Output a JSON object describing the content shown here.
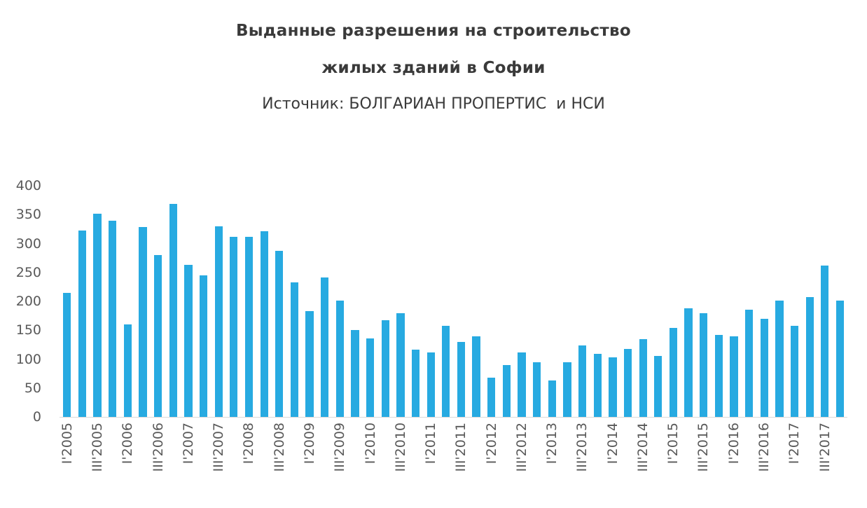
{
  "title": {
    "line1": "Выданные разрешения на строительство",
    "line2": "жилых зданий в Софии",
    "source": "Источник: БОЛГАРИАН ПРОПЕРТИС  и НСИ"
  },
  "chart_data": {
    "type": "bar",
    "title": "Выданные разрешения на строительство жилых зданий в Софии",
    "subtitle": "Источник: БОЛГАРИАН ПРОПЕРТИС  и НСИ",
    "xlabel": "",
    "ylabel": "",
    "ylim": [
      0,
      400
    ],
    "y_ticks": [
      0,
      50,
      100,
      150,
      200,
      250,
      300,
      350,
      400
    ],
    "grid": false,
    "legend": "none",
    "bar_color": "#27aae1",
    "axis_label_color": "#595959",
    "x_tick_every": 2,
    "categories": [
      "I'2005",
      "II'2005",
      "III'2005",
      "IV'2005",
      "I'2006",
      "II'2006",
      "III'2006",
      "IV'2006",
      "I'2007",
      "II'2007",
      "III'2007",
      "IV'2007",
      "I'2008",
      "II'2008",
      "III'2008",
      "IV'2008",
      "I'2009",
      "II'2009",
      "III'2009",
      "IV'2009",
      "I'2010",
      "II'2010",
      "III'2010",
      "IV'2010",
      "I'2011",
      "II'2011",
      "III'2011",
      "IV'2011",
      "I'2012",
      "II'2012",
      "III'2012",
      "IV'2012",
      "I'2013",
      "II'2013",
      "III'2013",
      "IV'2013",
      "I'2014",
      "II'2014",
      "III'2014",
      "IV'2014",
      "I'2015",
      "II'2015",
      "III'2015",
      "IV'2015",
      "I'2016",
      "II'2016",
      "III'2016",
      "IV'2016",
      "I'2017",
      "II'2017",
      "III'2017",
      "IV'2017"
    ],
    "values": [
      215,
      322,
      352,
      340,
      160,
      328,
      280,
      368,
      263,
      245,
      330,
      312,
      311,
      321,
      287,
      233,
      183,
      241,
      201,
      150,
      136,
      167,
      180,
      116,
      112,
      157,
      130,
      139,
      68,
      90,
      112,
      95,
      63,
      95,
      124,
      109,
      103,
      118,
      135,
      106,
      154,
      188,
      179,
      142,
      140,
      186,
      170,
      201,
      158,
      207,
      262,
      201
    ]
  }
}
